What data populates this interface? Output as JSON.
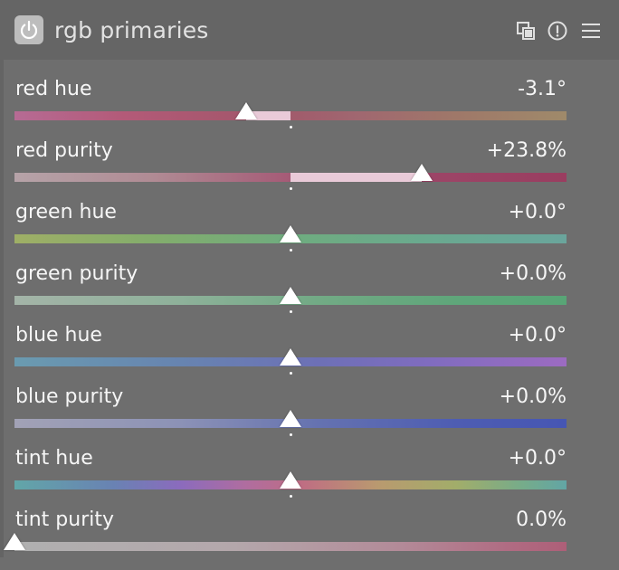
{
  "header": {
    "title": "rgb primaries",
    "icons": [
      "power-icon",
      "presets-icon",
      "info-icon",
      "menu-icon"
    ]
  },
  "sliders": [
    {
      "label": "red hue",
      "value_text": "-3.1°",
      "position": 0.42,
      "default": 0.5,
      "gradient": "linear-gradient(90deg,#b66b94 0%,#b35a78 20%,#a2566a 45%,#a06770 62%,#9f7869 80%,#9f8a6a 100%)"
    },
    {
      "label": "red purity",
      "value_text": "+23.8%",
      "position": 0.738,
      "default": 0.5,
      "gradient": "linear-gradient(90deg,#b6a3a8 0%,#b08b94 25%,#a55a76 50%,#9c4567 75%,#9a3d60 100%)"
    },
    {
      "label": "green hue",
      "value_text": "+0.0°",
      "position": 0.5,
      "default": 0.5,
      "gradient": "linear-gradient(90deg,#9faf66 0%,#83ad6c 25%,#6fac7f 50%,#6aa98f 75%,#6aa59c 100%)"
    },
    {
      "label": "green purity",
      "value_text": "+0.0%",
      "position": 0.5,
      "default": 0.5,
      "gradient": "linear-gradient(90deg,#a4b4a8 0%,#8eb19a 30%,#72aa85 55%,#5fa67a 80%,#58a576 100%)"
    },
    {
      "label": "blue hue",
      "value_text": "+0.0°",
      "position": 0.5,
      "default": 0.5,
      "gradient": "linear-gradient(90deg,#6a9bb0 0%,#6784b0 30%,#6d70b6 55%,#806cbf 75%,#9c6bc1 100%)"
    },
    {
      "label": "blue purity",
      "value_text": "+0.0%",
      "position": 0.5,
      "default": 0.5,
      "gradient": "linear-gradient(90deg,#a2a2b6 0%,#8c92b6 30%,#6572b0 55%,#4e5db2 80%,#4656b3 100%)"
    },
    {
      "label": "tint hue",
      "value_text": "+0.0°",
      "position": 0.5,
      "default": 0.5,
      "gradient": "linear-gradient(90deg,#62a6a8 0%,#6982b3 18%,#8b6bbd 30%,#b06d9f 42%,#bf6d83 52%,#b99a6f 66%,#a2ad6a 80%,#76ac8a 92%,#62a5a5 100%)"
    },
    {
      "label": "tint purity",
      "value_text": "0.0%",
      "position": 0.0,
      "default": 0.0,
      "gradient": "linear-gradient(90deg,#b0b0b0 0%,#b4a7ab 40%,#b38a98 70%,#b06b82 90%,#ad5f78 100%)"
    }
  ]
}
